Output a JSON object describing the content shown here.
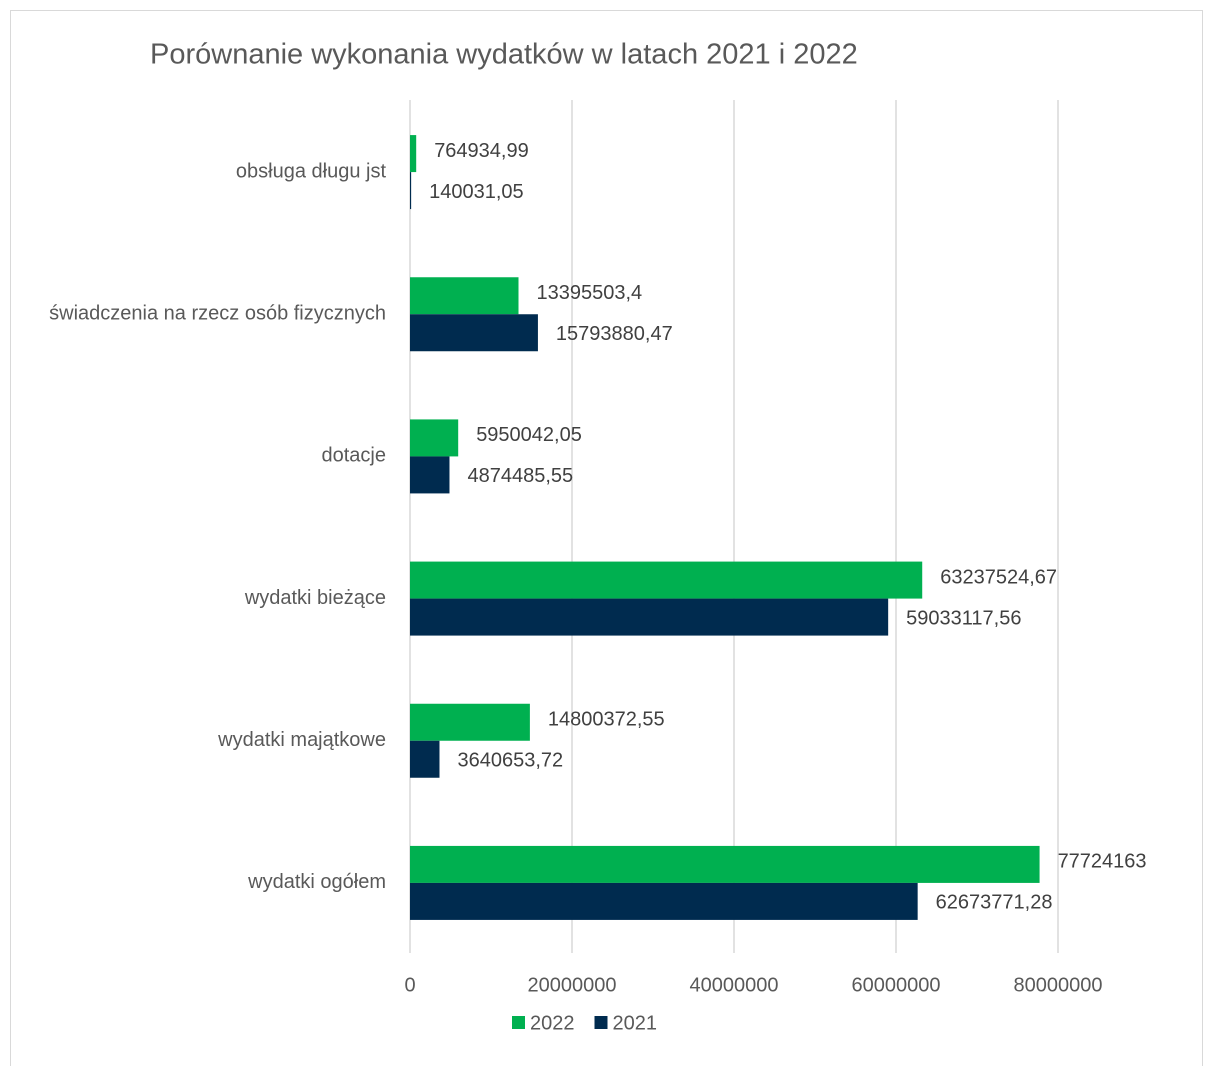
{
  "chart_data": {
    "type": "bar",
    "orientation": "horizontal",
    "title": "Porównanie wykonania wydatków w latach 2021 i 2022",
    "categories": [
      "obsługa długu jst",
      "świadczenia na rzecz osób fizycznych",
      "dotacje",
      "wydatki bieżące",
      "wydatki majątkowe",
      "wydatki ogółem"
    ],
    "series": [
      {
        "name": "2022",
        "color": "#00b050",
        "values": [
          764934.99,
          13395503.4,
          5950042.05,
          63237524.67,
          14800372.55,
          77724163
        ],
        "value_labels": [
          "764934,99",
          "13395503,4",
          "5950042,05",
          "63237524,67",
          "14800372,55",
          "77724163"
        ]
      },
      {
        "name": "2021",
        "color": "#002b4f",
        "values": [
          140031.05,
          15793880.47,
          4874485.55,
          59033117.56,
          3640653.72,
          62673771.28
        ],
        "value_labels": [
          "140031,05",
          "15793880,47",
          "4874485,55",
          "59033117,56",
          "3640653,72",
          "62673771,28"
        ]
      }
    ],
    "xlim": [
      0,
      80000000
    ],
    "xticks": [
      0,
      20000000,
      40000000,
      60000000,
      80000000
    ],
    "grid": true,
    "legend": "bottom"
  }
}
